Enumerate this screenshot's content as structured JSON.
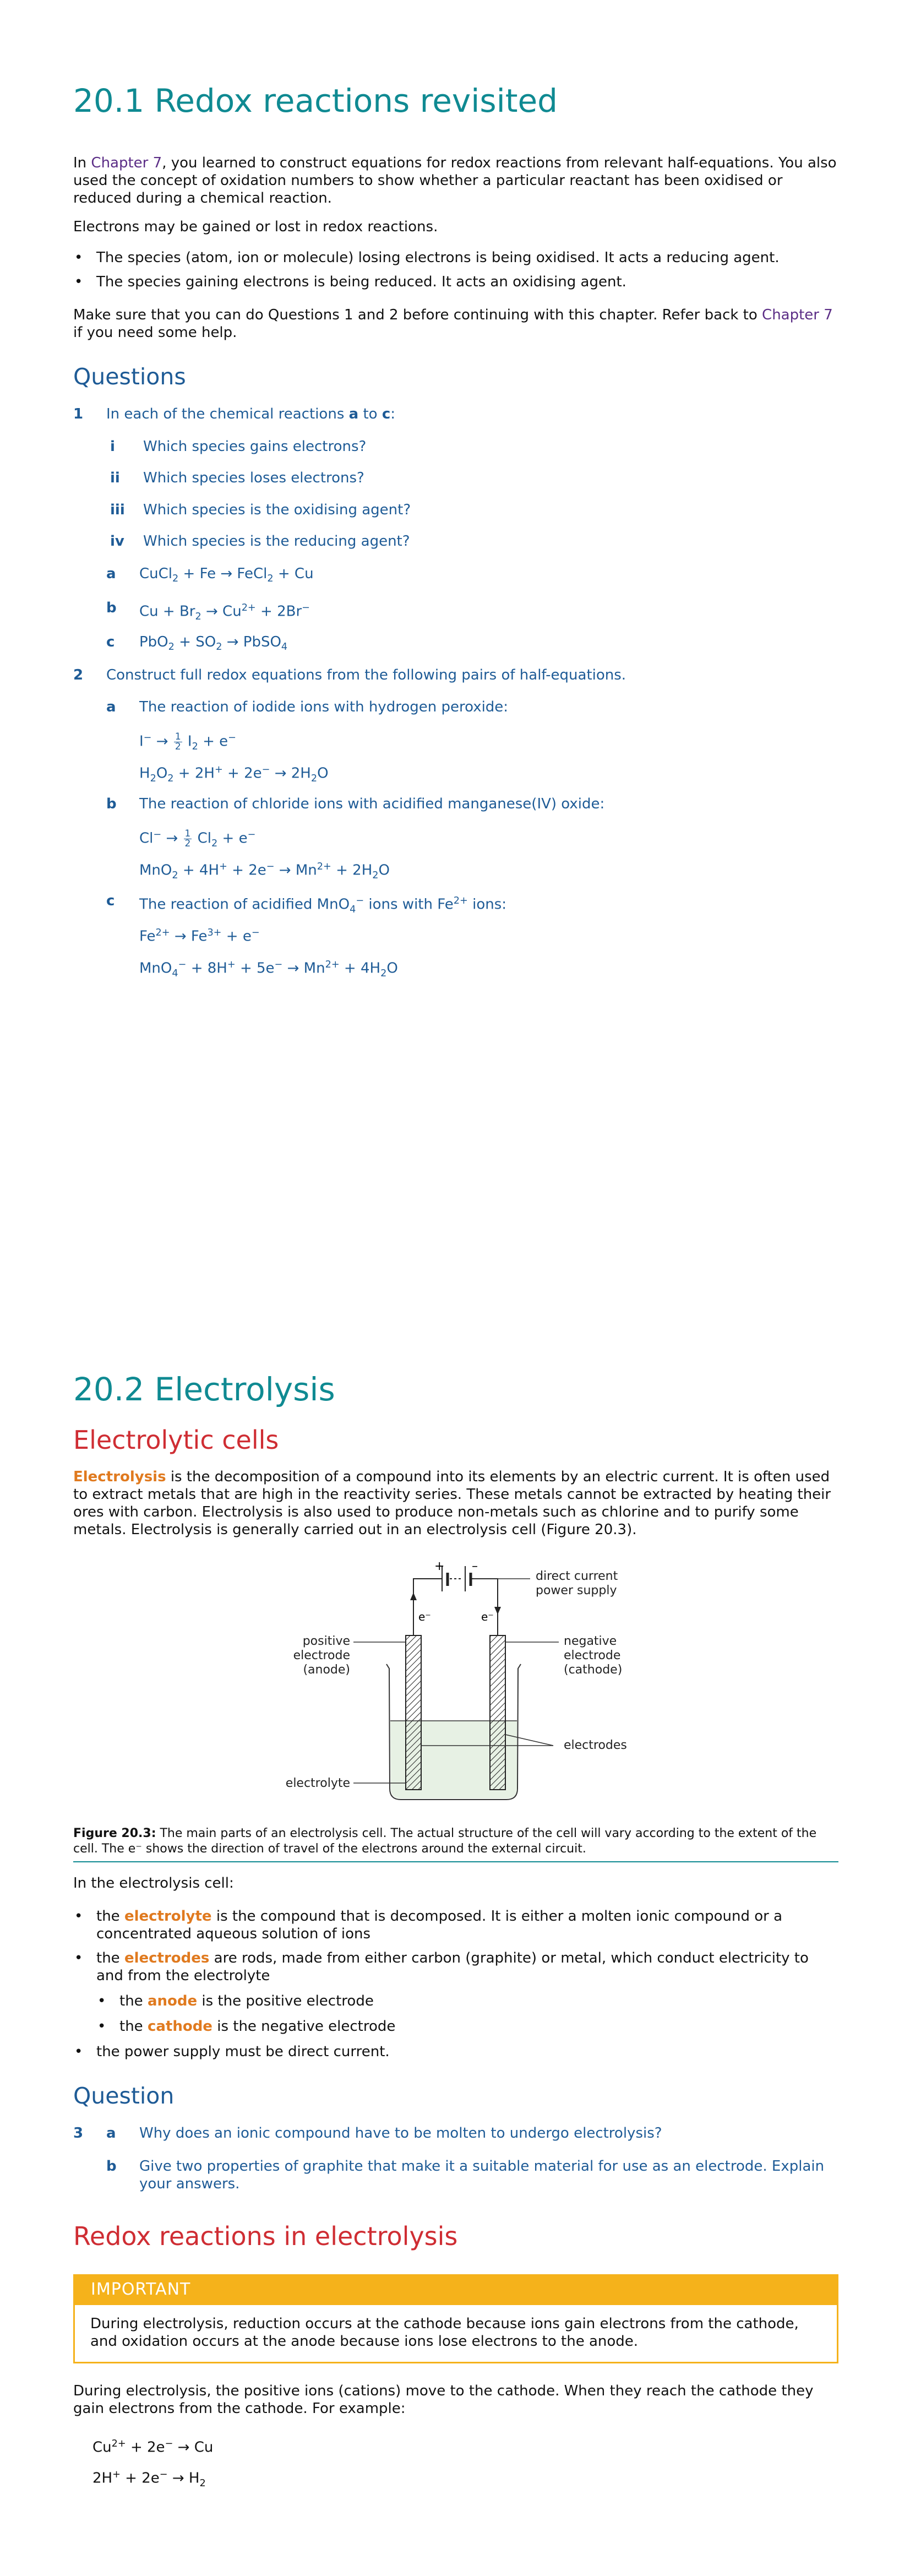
{
  "s1": {
    "title": "20.1 Redox reactions revisited",
    "intro_pre": "In ",
    "intro_link": "Chapter 7",
    "intro_post": ", you learned to construct equations for redox reactions from relevant half-equations. You also used the concept of oxidation numbers to show whether a particular reactant has been oxidised or reduced during a chemical reaction.",
    "para2": "Electrons may be gained or lost in redox reactions.",
    "bullets": [
      "The species (atom, ion or molecule) losing electrons is being oxidised. It acts a reducing agent.",
      "The species gaining electrons is being reduced. It acts an oxidising agent."
    ],
    "para3_pre": "Make sure that you can do Questions 1 and 2 before continuing with this chapter. Refer back to ",
    "para3_link": "Chapter 7",
    "para3_post": " if you need some help."
  },
  "questions1": {
    "heading": "Questions",
    "q1": {
      "num": "1",
      "text_pre": "In each of the chemical reactions ",
      "a": "a",
      "mid": " to ",
      "c": "c",
      "end": ":",
      "roman": [
        {
          "n": "i",
          "t": "Which species gains electrons?"
        },
        {
          "n": "ii",
          "t": "Which species loses electrons?"
        },
        {
          "n": "iii",
          "t": "Which species is the oxidising agent?"
        },
        {
          "n": "iv",
          "t": "Which species is the reducing agent?"
        }
      ],
      "letters": [
        "a",
        "b",
        "c"
      ]
    },
    "q2": {
      "num": "2",
      "text": "Construct full redox equations from the following pairs of half-equations.",
      "a_label": "a",
      "a_text": "The reaction of iodide ions with hydrogen peroxide:",
      "b_label": "b",
      "b_text": "The reaction of chloride ions with acidified manganese(IV) oxide:",
      "c_label": "c",
      "c_text_pre": "The reaction of acidified MnO",
      "c_text_mid": " ions with Fe",
      "c_text_post": " ions:"
    }
  },
  "s2": {
    "title": "20.2 Electrolysis",
    "sub1": "Electrolytic cells",
    "para1_term": "Electrolysis",
    "para1_rest": " is the decomposition of a compound into its elements by an electric current. It is often used to extract metals that are high in the reactivity series. These metals cannot be extracted by heating their ores with carbon. Electrolysis is also used to produce non-metals such as chlorine and to purify some metals. Electrolysis is generally carried out in an electrolysis cell (Figure 20.3).",
    "figure": {
      "labels": {
        "dc1": "direct current",
        "dc2": "power supply",
        "pos1": "positive",
        "pos2": "electrode",
        "pos3": "(anode)",
        "neg1": "negative",
        "neg2": "electrode",
        "neg3": "(cathode)",
        "electrodes": "electrodes",
        "electrolyte": "electrolyte",
        "plus": "+",
        "minus": "–",
        "e_left": "e⁻",
        "e_right": "e⁻"
      },
      "caption_label": "Figure 20.3:",
      "caption_text": " The main parts of an electrolysis cell. The actual structure of the cell will vary according to the extent of the cell. The e⁻ shows the direction of travel of the electrons around the external circuit."
    },
    "in_cell": "In the electrolysis cell:",
    "b1_pre": "the ",
    "b1_term": "electrolyte",
    "b1_post": " is the compound that is decomposed. It is either a molten ionic compound or a concentrated aqueous solution of ions",
    "b2_pre": "the ",
    "b2_term": "electrodes",
    "b2_post": " are rods, made from either carbon (graphite) or metal, which conduct electricity to and from the electrolyte",
    "b2a_pre": "the ",
    "b2a_term": "anode",
    "b2a_post": " is the positive electrode",
    "b2b_pre": "the ",
    "b2b_term": "cathode",
    "b2b_post": " is the negative electrode",
    "b3": "the power supply must be direct current."
  },
  "questions2": {
    "heading": "Question",
    "num": "3",
    "a_label": "a",
    "a_text": "Why does an ionic compound have to be molten to undergo electrolysis?",
    "b_label": "b",
    "b_text": "Give two properties of graphite that make it a suitable material for use as an electrode. Explain your answers."
  },
  "s3": {
    "title": "Redox reactions in electrolysis",
    "important_label": "IMPORTANT",
    "important_text": "During electrolysis, reduction occurs at the cathode because ions gain electrons from the cathode, and oxidation occurs at the anode because ions lose electrons to the anode.",
    "para": "During electrolysis, the positive ions (cations) move to the cathode. When they reach the cathode they gain electrons from the cathode. For example:"
  },
  "colors": {
    "teal": "#0f8a92",
    "navy": "#1e5b96",
    "red": "#cf2d33",
    "orange": "#e07a1f",
    "amber": "#f5b21b",
    "purple": "#5b2d86"
  }
}
